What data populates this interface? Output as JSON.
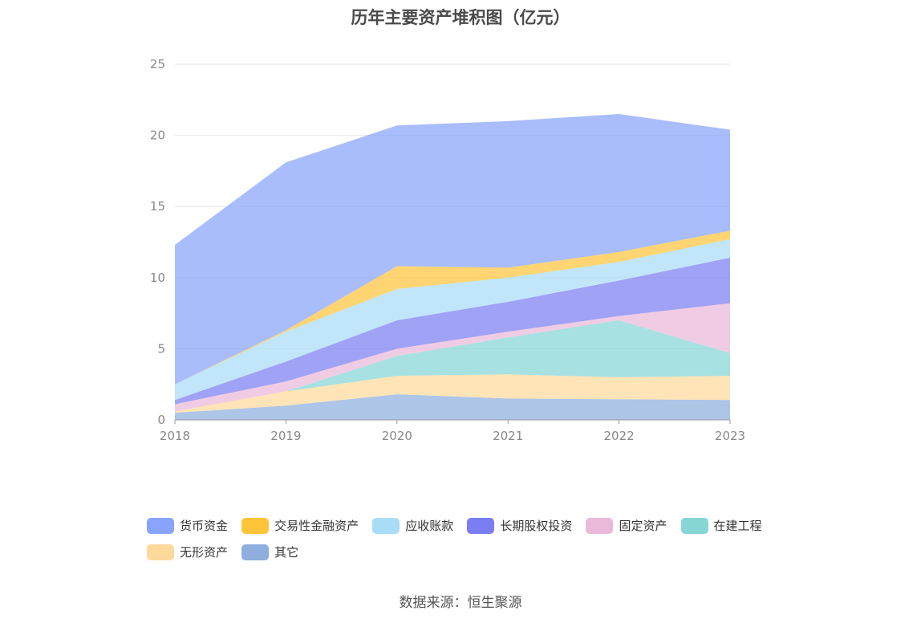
{
  "chart_data": {
    "type": "area",
    "stacked": true,
    "title": "历年主要资产堆积图（亿元）",
    "x": [
      "2018",
      "2019",
      "2020",
      "2021",
      "2022",
      "2023"
    ],
    "ylim": [
      0,
      25
    ],
    "yticks": [
      0,
      5,
      10,
      15,
      20,
      25
    ],
    "grid": true,
    "legend_position": "bottom",
    "series": [
      {
        "name": "其它",
        "color": "#8eaede",
        "values": [
          0.5,
          1.0,
          1.8,
          1.5,
          1.45,
          1.4
        ]
      },
      {
        "name": "无形资产",
        "color": "#fdd99b",
        "values": [
          0.1,
          1.0,
          1.3,
          1.7,
          1.55,
          1.7
        ]
      },
      {
        "name": "在建工程",
        "color": "#86d6d6",
        "values": [
          0.0,
          0.0,
          1.4,
          2.6,
          4.0,
          1.6
        ]
      },
      {
        "name": "固定资产",
        "color": "#eab8d9",
        "values": [
          0.5,
          0.7,
          0.5,
          0.4,
          0.3,
          3.5
        ]
      },
      {
        "name": "长期股权投资",
        "color": "#7b7ef2",
        "values": [
          0.3,
          1.4,
          2.0,
          2.1,
          2.5,
          3.2
        ]
      },
      {
        "name": "应收账款",
        "color": "#a9ddf7",
        "values": [
          1.1,
          2.1,
          2.2,
          1.7,
          1.3,
          1.3
        ]
      },
      {
        "name": "交易性金融资产",
        "color": "#fec53b",
        "values": [
          0.0,
          0.1,
          1.6,
          0.7,
          0.7,
          0.6
        ]
      },
      {
        "name": "货币资金",
        "color": "#88a4fc",
        "values": [
          9.8,
          11.8,
          9.9,
          10.3,
          9.7,
          7.1
        ]
      }
    ]
  },
  "legend": [
    {
      "label": "货币资金",
      "color": "#88a4fc"
    },
    {
      "label": "交易性金融资产",
      "color": "#fec53b"
    },
    {
      "label": "应收账款",
      "color": "#a9ddf7"
    },
    {
      "label": "长期股权投资",
      "color": "#7b7ef2"
    },
    {
      "label": "固定资产",
      "color": "#eab8d9"
    },
    {
      "label": "在建工程",
      "color": "#86d6d6"
    },
    {
      "label": "无形资产",
      "color": "#fdd99b"
    },
    {
      "label": "其它",
      "color": "#8eaede"
    }
  ],
  "source": "数据来源：恒生聚源"
}
